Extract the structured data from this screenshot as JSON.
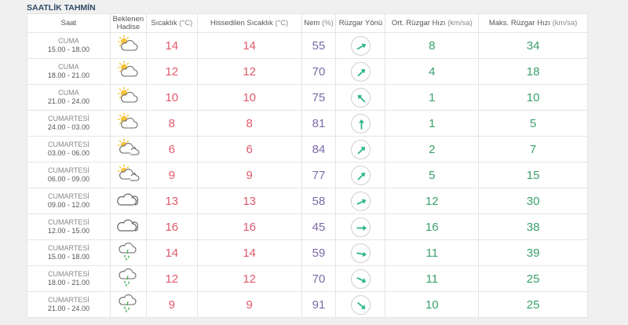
{
  "title": "SAATLİK TAHMİN",
  "headers": {
    "time": "Saat",
    "expected_line1": "Beklenen",
    "expected_line2": "Hadise",
    "temp": "Sıcaklık",
    "temp_unit": "(°C)",
    "feels": "Hissedilen Sıcaklık",
    "feels_unit": "(°C)",
    "humidity": "Nem",
    "humidity_unit": "(%)",
    "wind_dir": "Rüzgar Yönü",
    "wind_avg": "Ort. Rüzgar Hızı",
    "wind_avg_unit": "(km/sa)",
    "wind_max": "Maks. Rüzgar Hızı",
    "wind_max_unit": "(km/sa)"
  },
  "colors": {
    "temp": "#e05a6b",
    "humidity": "#7b6aa8",
    "wind": "#3aa06a",
    "arrow": "#2bb58d"
  },
  "rows": [
    {
      "day": "CUMA",
      "hours": "15.00 - 18.00",
      "icon": "partly-sunny-icon",
      "temp": "14",
      "feels": "14",
      "humidity": "55",
      "dir_angle": 60,
      "avg": "8",
      "max": "34"
    },
    {
      "day": "CUMA",
      "hours": "18.00 - 21.00",
      "icon": "partly-sunny-icon",
      "temp": "12",
      "feels": "12",
      "humidity": "70",
      "dir_angle": 45,
      "avg": "4",
      "max": "18"
    },
    {
      "day": "CUMA",
      "hours": "21.00 - 24.00",
      "icon": "partly-sunny-icon",
      "temp": "10",
      "feels": "10",
      "humidity": "75",
      "dir_angle": -45,
      "avg": "1",
      "max": "10"
    },
    {
      "day": "CUMARTESİ",
      "hours": "24.00 - 03.00",
      "icon": "partly-sunny-icon",
      "temp": "8",
      "feels": "8",
      "humidity": "81",
      "dir_angle": 0,
      "avg": "1",
      "max": "5"
    },
    {
      "day": "CUMARTESİ",
      "hours": "03.00 - 06.00",
      "icon": "partly-cloudy-icon",
      "temp": "6",
      "feels": "6",
      "humidity": "84",
      "dir_angle": 45,
      "avg": "2",
      "max": "7"
    },
    {
      "day": "CUMARTESİ",
      "hours": "06.00 - 09.00",
      "icon": "partly-cloudy-icon",
      "temp": "9",
      "feels": "9",
      "humidity": "77",
      "dir_angle": 45,
      "avg": "5",
      "max": "15"
    },
    {
      "day": "CUMARTESİ",
      "hours": "09.00 - 12.00",
      "icon": "cloud-icon",
      "temp": "13",
      "feels": "13",
      "humidity": "58",
      "dir_angle": 65,
      "avg": "12",
      "max": "30"
    },
    {
      "day": "CUMARTESİ",
      "hours": "12.00 - 15.00",
      "icon": "cloud-icon",
      "temp": "16",
      "feels": "16",
      "humidity": "45",
      "dir_angle": 90,
      "avg": "16",
      "max": "38"
    },
    {
      "day": "CUMARTESİ",
      "hours": "15.00 - 18.00",
      "icon": "rain-icon",
      "temp": "14",
      "feels": "14",
      "humidity": "59",
      "dir_angle": 100,
      "avg": "11",
      "max": "39"
    },
    {
      "day": "CUMARTESİ",
      "hours": "18.00 - 21.00",
      "icon": "rain-icon",
      "temp": "12",
      "feels": "12",
      "humidity": "70",
      "dir_angle": 115,
      "avg": "11",
      "max": "25"
    },
    {
      "day": "CUMARTESİ",
      "hours": "21.00 - 24.00",
      "icon": "rain-icon",
      "temp": "9",
      "feels": "9",
      "humidity": "91",
      "dir_angle": 130,
      "avg": "10",
      "max": "25"
    }
  ]
}
